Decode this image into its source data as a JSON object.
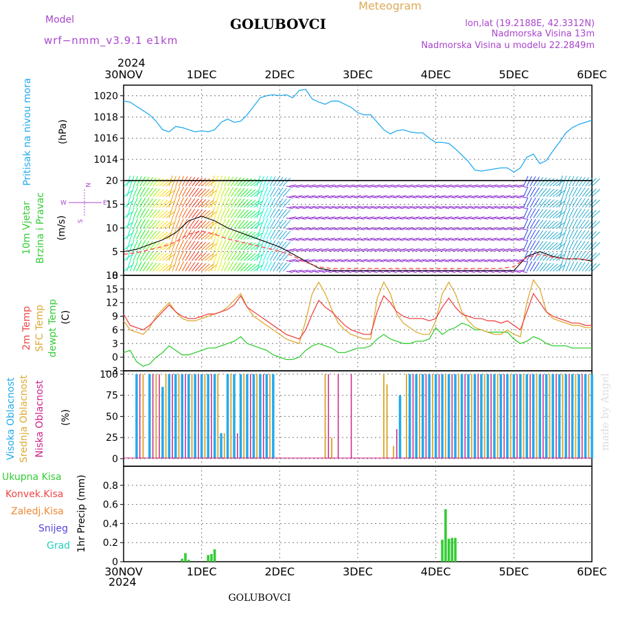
{
  "header": {
    "title": "GOLUBOVCI",
    "model_label": "Model",
    "model_name": "wrf−nmm_v3.9.1  e1km",
    "meteogram_label": "Meteogram",
    "coords": "lon,lat (19.2188E, 42.3312N)",
    "elevation": "Nadmorska Visina 13m",
    "model_elevation": "Nadmorska Visina u modelu 22.2849m",
    "year_top": "2024",
    "year_bottom": "2024",
    "footer_title": "GOLUBOVCI",
    "watermark": "made by Angel"
  },
  "colors": {
    "pressure": "#22aaee",
    "temp2m": "#ee4444",
    "sfc": "#ddaa33",
    "dewpt": "#33cc33",
    "high_cloud": "#22aaee",
    "mid_cloud": "#ddaa33",
    "low_cloud": "#cc2288",
    "total_precip": "#33cc33",
    "conv_precip": "#ee4444",
    "frozen_precip": "#ee8833",
    "snow": "#5544dd",
    "hail": "#22ccbb",
    "title": "#000000",
    "meta_purple": "#aa44cc",
    "meteogram_orange": "#ddaa55"
  },
  "time_axis": {
    "start": "2024-11-30 00:00",
    "end": "2024-12-06 00:00",
    "ticks": [
      "30NOV",
      "1DEC",
      "2DEC",
      "3DEC",
      "4DEC",
      "5DEC",
      "6DEC"
    ]
  },
  "panels": {
    "pressure": {
      "label": "Pritisak na nivou mora",
      "unit": "(hPa)",
      "ticks": [
        "1014",
        "1016",
        "1018",
        "1020"
      ]
    },
    "wind": {
      "label_line1": "10m Vjetar",
      "label_line2": "Brzina i Pravac",
      "unit": "(m/s)",
      "compass_n": "N",
      "compass_w": "W",
      "compass_e": "E",
      "compass_s": "S",
      "ticks": [
        "0",
        "5",
        "10",
        "15",
        "20"
      ]
    },
    "temperature": {
      "label_2m": "2m Temp",
      "label_sfc": "SFC Temp",
      "label_dewpt": "dewpt Temp",
      "unit": "(C)",
      "ticks": [
        "−3",
        "0",
        "3",
        "6",
        "9",
        "12",
        "15",
        "18"
      ]
    },
    "cloud": {
      "label_high": "Visoka Oblacnost",
      "label_mid": "Srednja Oblacnost",
      "label_low": "Niska Oblacnost",
      "unit": "(%)",
      "ticks": [
        "0",
        "25",
        "50",
        "75",
        "100"
      ]
    },
    "precip": {
      "label_total": "Ukupna Kisa",
      "label_conv": "Konvek.Kisa",
      "label_frozen": "Zaledj.Kisa",
      "label_snow": "Snijeg",
      "label_hail": "Grad",
      "unit": "1hr Precip (mm)",
      "ticks": [
        "0",
        "0.2",
        "0.4",
        "0.6",
        "0.8"
      ]
    }
  },
  "chart_data": [
    {
      "type": "line",
      "name": "sea-level-pressure",
      "x_unit": "hours since 2024-11-30 00:00 UTC",
      "ylim": [
        1012,
        1021
      ],
      "series": [
        {
          "name": "Pritisak na nivou mora",
          "x": [
            0,
            2,
            4,
            6,
            8,
            10,
            12,
            14,
            16,
            18,
            20,
            22,
            24,
            26,
            28,
            30,
            32,
            34,
            36,
            38,
            40,
            42,
            44,
            46,
            48,
            50,
            52,
            54,
            56,
            58,
            60,
            62,
            64,
            66,
            68,
            70,
            72,
            74,
            76,
            78,
            80,
            82,
            84,
            86,
            88,
            90,
            92,
            94,
            96,
            98,
            100,
            102,
            104,
            106,
            108,
            110,
            112,
            114,
            116,
            118,
            120,
            122,
            124,
            126,
            128,
            130,
            132,
            134,
            136,
            138,
            140,
            142,
            144
          ],
          "values": [
            1019.5,
            1019.4,
            1019.0,
            1018.6,
            1018.2,
            1017.6,
            1016.8,
            1016.6,
            1017.1,
            1017.0,
            1016.8,
            1016.6,
            1016.7,
            1016.6,
            1016.8,
            1017.5,
            1017.8,
            1017.5,
            1017.6,
            1018.2,
            1019.0,
            1019.8,
            1020.0,
            1020.1,
            1020.0,
            1020.1,
            1019.8,
            1020.5,
            1020.6,
            1019.7,
            1019.4,
            1019.2,
            1019.5,
            1019.5,
            1019.2,
            1018.9,
            1018.4,
            1018.2,
            1018.2,
            1017.5,
            1016.8,
            1016.4,
            1016.7,
            1016.8,
            1016.6,
            1016.5,
            1016.5,
            1016.0,
            1015.6,
            1015.6,
            1015.5,
            1015.0,
            1014.4,
            1013.8,
            1013.0,
            1012.9,
            1013.0,
            1013.1,
            1013.2,
            1013.2,
            1012.8,
            1013.2,
            1014.2,
            1014.5,
            1013.6,
            1013.9,
            1014.8,
            1015.6,
            1016.5,
            1017.0,
            1017.3,
            1017.5,
            1017.7
          ]
        }
      ]
    },
    {
      "type": "line",
      "name": "wind-speed",
      "x_unit": "hours since 2024-11-30 00:00 UTC",
      "ylim": [
        0,
        20
      ],
      "series": [
        {
          "name": "10m Vjetar brzina",
          "x": [
            0,
            4,
            8,
            12,
            16,
            20,
            24,
            28,
            32,
            36,
            40,
            44,
            48,
            52,
            56,
            60,
            64,
            68,
            72,
            76,
            80,
            84,
            88,
            92,
            96,
            100,
            104,
            108,
            112,
            116,
            120,
            124,
            128,
            132,
            136,
            140,
            144
          ],
          "values": [
            5.0,
            5.5,
            6.5,
            7.5,
            9.0,
            11.5,
            12.5,
            11.5,
            10.0,
            9.0,
            8.0,
            7.0,
            6.0,
            4.5,
            3.0,
            1.5,
            1.0,
            1.0,
            1.0,
            1.0,
            1.0,
            1.0,
            1.0,
            1.0,
            1.0,
            1.0,
            1.0,
            1.0,
            1.0,
            1.0,
            1.0,
            4.0,
            5.0,
            4.0,
            3.5,
            3.5,
            3.0
          ]
        }
      ]
    },
    {
      "type": "line",
      "name": "temperature",
      "x_unit": "hours since 2024-11-30 00:00 UTC",
      "ylim": [
        -3,
        18
      ],
      "series": [
        {
          "name": "2m Temp",
          "x": [
            0,
            2,
            4,
            6,
            8,
            10,
            12,
            14,
            16,
            18,
            20,
            22,
            24,
            26,
            28,
            30,
            32,
            34,
            36,
            38,
            40,
            42,
            44,
            46,
            48,
            50,
            52,
            54,
            56,
            58,
            60,
            62,
            64,
            66,
            68,
            70,
            72,
            74,
            76,
            78,
            80,
            82,
            84,
            86,
            88,
            90,
            92,
            94,
            96,
            98,
            100,
            102,
            104,
            106,
            108,
            110,
            112,
            114,
            116,
            118,
            120,
            122,
            124,
            126,
            128,
            130,
            132,
            134,
            136,
            138,
            140,
            142,
            144
          ],
          "values": [
            9.5,
            7,
            6.5,
            6,
            7,
            8.5,
            10,
            11.5,
            10,
            9,
            8.5,
            8.5,
            9,
            9.5,
            9.5,
            10,
            10.5,
            11.5,
            13.5,
            11,
            10,
            9,
            8,
            7,
            6,
            5,
            4.5,
            4,
            6,
            9.5,
            12.5,
            11,
            10,
            8.5,
            7,
            6,
            5.5,
            5,
            5,
            10,
            13.5,
            12,
            10,
            9,
            8.5,
            8.5,
            8.5,
            8,
            8.5,
            11,
            13,
            11,
            9.5,
            9,
            8.5,
            8.5,
            8,
            8,
            7.5,
            8,
            7,
            6,
            10,
            14,
            12,
            10,
            9,
            8.5,
            8,
            7.5,
            7.5,
            7,
            7
          ]
        },
        {
          "name": "SFC Temp",
          "x": [
            0,
            2,
            4,
            6,
            8,
            10,
            12,
            14,
            16,
            18,
            20,
            22,
            24,
            26,
            28,
            30,
            32,
            34,
            36,
            38,
            40,
            42,
            44,
            46,
            48,
            50,
            52,
            54,
            56,
            58,
            60,
            62,
            64,
            66,
            68,
            70,
            72,
            74,
            76,
            78,
            80,
            82,
            84,
            86,
            88,
            90,
            92,
            94,
            96,
            98,
            100,
            102,
            104,
            106,
            108,
            110,
            112,
            114,
            116,
            118,
            120,
            122,
            124,
            126,
            128,
            130,
            132,
            134,
            136,
            138,
            140,
            142,
            144
          ],
          "values": [
            8,
            6,
            5.5,
            5,
            6.5,
            9,
            10.5,
            12,
            10,
            8.5,
            8,
            8,
            8.5,
            9,
            9.5,
            10,
            11,
            12.5,
            14,
            11,
            9,
            8,
            7,
            6,
            5,
            4,
            3.5,
            3,
            8,
            14,
            16.5,
            14,
            10.5,
            7.5,
            6,
            5,
            4.5,
            4,
            4,
            13,
            16.5,
            14,
            9.5,
            7.5,
            6.5,
            5.5,
            5,
            5,
            8,
            14,
            16.5,
            14,
            10,
            8,
            6.5,
            6,
            5.5,
            5,
            5,
            6,
            5,
            4.5,
            12,
            17,
            15,
            10,
            8.5,
            8,
            7.5,
            7,
            7,
            6.5,
            6.5
          ]
        },
        {
          "name": "dewpt Temp",
          "x": [
            0,
            2,
            4,
            6,
            8,
            10,
            12,
            14,
            16,
            18,
            20,
            22,
            24,
            26,
            28,
            30,
            32,
            34,
            36,
            38,
            40,
            42,
            44,
            46,
            48,
            50,
            52,
            54,
            56,
            58,
            60,
            62,
            64,
            66,
            68,
            70,
            72,
            74,
            76,
            78,
            80,
            82,
            84,
            86,
            88,
            90,
            92,
            94,
            96,
            98,
            100,
            102,
            104,
            106,
            108,
            110,
            112,
            114,
            116,
            118,
            120,
            122,
            124,
            126,
            128,
            130,
            132,
            134,
            136,
            138,
            140,
            142,
            144
          ],
          "values": [
            1,
            1.5,
            -1,
            -2,
            -1.5,
            0,
            1,
            2.5,
            1.5,
            0.5,
            0.5,
            1,
            1.5,
            2,
            2,
            2.5,
            3,
            3.5,
            4.5,
            3,
            2.5,
            2,
            1.5,
            0.5,
            0,
            -0.5,
            -0.5,
            0,
            1.5,
            2.5,
            3,
            2.5,
            2,
            1,
            1,
            1.5,
            2,
            2,
            2.5,
            4,
            5,
            4,
            3.5,
            3,
            3,
            3.5,
            3.5,
            4,
            6.5,
            5,
            6,
            6.5,
            7.5,
            7,
            6,
            6,
            5.5,
            5.5,
            5.5,
            5.5,
            4,
            3,
            3.5,
            4.5,
            4,
            3,
            2.5,
            2.5,
            2.5,
            2,
            2,
            2,
            2
          ]
        }
      ]
    },
    {
      "type": "bar",
      "name": "cloud-cover",
      "x_unit": "hours since 2024-11-30 00:00 UTC",
      "ylim": [
        0,
        100
      ],
      "series": [
        {
          "name": "Visoka Oblacnost",
          "x": [
            4,
            8,
            12,
            14,
            16,
            18,
            20,
            22,
            24,
            26,
            28,
            30,
            32,
            34,
            36,
            38,
            40,
            42,
            44,
            46,
            85,
            88,
            90,
            92,
            94,
            96,
            98,
            100,
            102,
            104,
            106,
            108,
            110,
            112,
            114,
            116,
            118,
            120,
            122,
            124,
            126,
            128,
            130,
            132,
            134,
            136,
            138,
            140,
            142,
            144
          ],
          "values": [
            100,
            100,
            85,
            100,
            100,
            100,
            100,
            100,
            100,
            100,
            100,
            30,
            100,
            100,
            100,
            100,
            100,
            100,
            100,
            100,
            75,
            100,
            100,
            100,
            100,
            100,
            100,
            100,
            100,
            100,
            100,
            100,
            100,
            100,
            100,
            100,
            100,
            100,
            100,
            100,
            100,
            100,
            100,
            100,
            100,
            100,
            100,
            100,
            100,
            100
          ]
        },
        {
          "name": "Srednja Oblacnost",
          "x": [
            6,
            10,
            13,
            17,
            21,
            25,
            29,
            31,
            33,
            37,
            41,
            45,
            62,
            64,
            80,
            81,
            83,
            87,
            91,
            95,
            99,
            103,
            107,
            111,
            115,
            119,
            123,
            127,
            131,
            135,
            139,
            143
          ],
          "values": [
            100,
            100,
            100,
            100,
            100,
            100,
            100,
            30,
            100,
            100,
            100,
            100,
            100,
            25,
            100,
            88,
            15,
            100,
            100,
            100,
            100,
            100,
            100,
            100,
            100,
            100,
            100,
            100,
            100,
            100,
            100,
            100
          ]
        },
        {
          "name": "Niska Oblacnost",
          "x": [
            5,
            9,
            11,
            15,
            19,
            23,
            27,
            35,
            39,
            43,
            63,
            66,
            70,
            84,
            89,
            93,
            97,
            101,
            105,
            109,
            113,
            117,
            121,
            125,
            129,
            133,
            137,
            141
          ],
          "values": [
            100,
            100,
            100,
            100,
            100,
            100,
            100,
            30,
            100,
            100,
            100,
            100,
            100,
            35,
            100,
            100,
            100,
            100,
            100,
            100,
            100,
            100,
            100,
            100,
            100,
            100,
            100,
            100
          ]
        }
      ]
    },
    {
      "type": "bar",
      "name": "precipitation",
      "x_unit": "hours since 2024-11-30 00:00 UTC",
      "ylim": [
        0,
        1
      ],
      "series": [
        {
          "name": "Ukupna Kisa",
          "x": [
            18,
            19,
            20,
            26,
            27,
            28,
            98,
            99,
            100,
            101,
            102
          ],
          "values": [
            0.03,
            0.09,
            0.02,
            0.07,
            0.08,
            0.13,
            0.23,
            0.55,
            0.24,
            0.25,
            0.25
          ]
        },
        {
          "name": "Konvek.Kisa",
          "x": [],
          "values": []
        },
        {
          "name": "Zaledj.Kisa",
          "x": [],
          "values": []
        },
        {
          "name": "Snijeg",
          "x": [],
          "values": []
        },
        {
          "name": "Grad",
          "x": [],
          "values": []
        }
      ]
    }
  ]
}
